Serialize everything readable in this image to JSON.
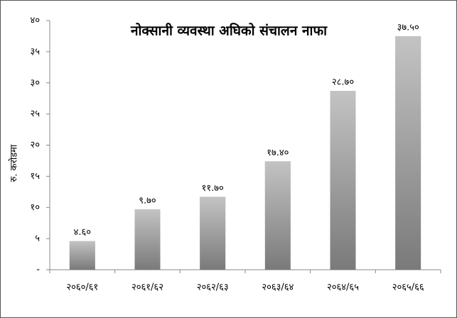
{
  "chart_data": {
    "type": "bar",
    "title": "नोक्सानी व्यवस्था अघिको संचालन नाफा",
    "ylabel": "रु. करोडमा",
    "categories": [
      "२०६०/६१",
      "२०६१/६२",
      "२०६२/६३",
      "२०६३/६४",
      "२०६४/६५",
      "२०६५/६६"
    ],
    "values": [
      4.6,
      9.7,
      11.7,
      17.4,
      28.7,
      37.5
    ],
    "value_labels": [
      "४.६०",
      "९.७०",
      "११.७०",
      "१७.४०",
      "२८.७०",
      "३७.५०"
    ],
    "color": "#7a7a7a",
    "ylim": [
      0,
      40
    ],
    "yticks": [
      {
        "value": 0,
        "label": "-"
      },
      {
        "value": 5,
        "label": "५"
      },
      {
        "value": 10,
        "label": "१०"
      },
      {
        "value": 15,
        "label": "१५"
      },
      {
        "value": 20,
        "label": "२०"
      },
      {
        "value": 25,
        "label": "२५"
      },
      {
        "value": 30,
        "label": "३०"
      },
      {
        "value": 35,
        "label": "३५"
      },
      {
        "value": 40,
        "label": "४०"
      }
    ],
    "grid": false
  }
}
